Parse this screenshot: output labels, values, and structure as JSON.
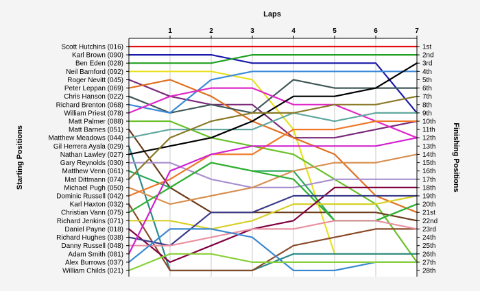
{
  "chart_data": {
    "type": "line",
    "title": "Laps",
    "ylabel_left": "Starting Positions",
    "ylabel_right": "Finishing Positions",
    "x_ticks": [
      "1",
      "2",
      "3",
      "4",
      "5",
      "6",
      "7"
    ],
    "x": [
      0,
      1,
      2,
      3,
      4,
      5,
      6,
      7
    ],
    "position_labels": [
      "1st",
      "2nd",
      "3rd",
      "4th",
      "5th",
      "6th",
      "7th",
      "8th",
      "9th",
      "10th",
      "11th",
      "12th",
      "13th",
      "14th",
      "15th",
      "16th",
      "17th",
      "18th",
      "19th",
      "20th",
      "21st",
      "22nd",
      "23rd",
      "24th",
      "25th",
      "26th",
      "27th",
      "28th"
    ],
    "y_range": [
      1,
      28
    ],
    "series": [
      {
        "name": "Scott Hutchins (016)",
        "color": "#e01010",
        "values": [
          1,
          1,
          1,
          1,
          1,
          1,
          1,
          1
        ]
      },
      {
        "name": "Karl Brown (090)",
        "color": "#1a1aaa",
        "values": [
          2,
          2,
          2,
          3,
          3,
          3,
          3,
          9
        ]
      },
      {
        "name": "Ben Eden (028)",
        "color": "#20a020",
        "values": [
          3,
          3,
          3,
          2,
          2,
          2,
          2,
          2
        ]
      },
      {
        "name": "Neil Bamford (092)",
        "color": "#e8e020",
        "values": [
          4,
          4,
          4,
          5,
          11,
          26,
          26,
          26
        ]
      },
      {
        "name": "Roger Nevitt (045)",
        "color": "#7a2a7a",
        "values": [
          5,
          7,
          8,
          8,
          12,
          12,
          11,
          10
        ]
      },
      {
        "name": "Peter Leppan (069)",
        "color": "#e07020",
        "values": [
          6,
          5,
          7,
          10,
          12,
          14,
          19,
          21
        ]
      },
      {
        "name": "Chris Hanson (022)",
        "color": "#405858",
        "values": [
          7,
          9,
          8,
          9,
          5,
          6,
          6,
          6
        ]
      },
      {
        "name": "Richard Brenton (068)",
        "color": "#3a8ad8",
        "values": [
          8,
          9,
          5,
          4,
          4,
          4,
          4,
          4
        ]
      },
      {
        "name": "William Priest (078)",
        "color": "#e028c8",
        "values": [
          9,
          7,
          6,
          6,
          8,
          8,
          10,
          12
        ]
      },
      {
        "name": "Matt Palmer (088)",
        "color": "#68c028",
        "values": [
          10,
          10,
          12,
          13,
          14,
          17,
          20,
          27
        ]
      },
      {
        "name": "Matt Barnes (051)",
        "color": "#6a3a1a",
        "values": [
          11,
          18,
          21,
          21,
          21,
          21,
          21,
          22
        ]
      },
      {
        "name": "Matthew Meadows (044)",
        "color": "#60a8a0",
        "values": [
          12,
          11,
          11,
          11,
          9,
          10,
          9,
          9
        ]
      },
      {
        "name": "Gil Herrera Ayala (029)",
        "color": "#2a8888",
        "values": [
          13,
          28,
          28,
          28,
          26,
          26,
          26,
          26
        ]
      },
      {
        "name": "Nathan Lawley (027)",
        "color": "#000000",
        "values": [
          14,
          13,
          12,
          10,
          7,
          7,
          6,
          3
        ]
      },
      {
        "name": "Gary Reynolds (030)",
        "color": "#a890d0",
        "values": [
          15,
          15,
          17,
          18,
          18,
          17,
          17,
          17
        ]
      },
      {
        "name": "Matthew Venn (061)",
        "color": "#28a858",
        "values": [
          16,
          18,
          15,
          16,
          16,
          22,
          22,
          20
        ]
      },
      {
        "name": "Mat Dittmann (074)",
        "color": "#8a7a28",
        "values": [
          17,
          12,
          10,
          9,
          9,
          8,
          8,
          7
        ]
      },
      {
        "name": "Michael Pugh (050)",
        "color": "#d89050",
        "values": [
          18,
          20,
          19,
          18,
          16,
          15,
          15,
          14
        ]
      },
      {
        "name": "Dominic Russell (042)",
        "color": "#f07828",
        "values": [
          19,
          17,
          14,
          14,
          11,
          11,
          10,
          10
        ]
      },
      {
        "name": "Karl Haxton (032)",
        "color": "#8a4a28",
        "values": [
          20,
          28,
          28,
          28,
          25,
          24,
          23,
          23
        ]
      },
      {
        "name": "Christian Vann (075)",
        "color": "#30b030",
        "values": [
          21,
          18,
          15,
          16,
          17,
          22,
          22,
          20
        ]
      },
      {
        "name": "Richard Jenkins (071)",
        "color": "#d8d028",
        "values": [
          22,
          22,
          23,
          22,
          20,
          20,
          20,
          19
        ]
      },
      {
        "name": "Daniel Payne (018)",
        "color": "#800040",
        "values": [
          23,
          27,
          25,
          23,
          22,
          18,
          18,
          18
        ]
      },
      {
        "name": "Richard Hughes (038)",
        "color": "#3a3a8a",
        "values": [
          24,
          25,
          21,
          21,
          19,
          19,
          19,
          19
        ]
      },
      {
        "name": "Danny Russell (048)",
        "color": "#e890a0",
        "values": [
          25,
          25,
          24,
          23,
          23,
          22,
          22,
          23
        ]
      },
      {
        "name": "Adam Smith (081)",
        "color": "#d020d0",
        "values": [
          26,
          16,
          14,
          13,
          13,
          13,
          13,
          12
        ]
      },
      {
        "name": "Alex Burrows (037)",
        "color": "#3a88d0",
        "values": [
          27,
          23,
          23,
          24,
          28,
          28,
          27,
          27
        ]
      },
      {
        "name": "William Childs (021)",
        "color": "#88d038",
        "values": [
          28,
          26,
          26,
          27,
          27,
          27,
          27,
          27
        ]
      }
    ]
  }
}
